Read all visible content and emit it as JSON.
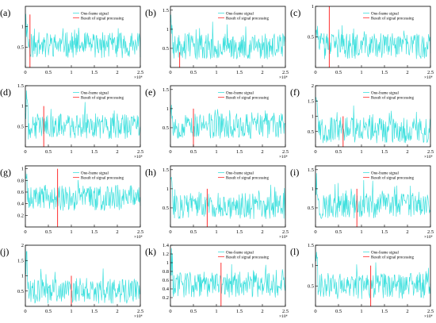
{
  "figure": {
    "legend": {
      "signal": "One-frame signal",
      "result": "Result of signal processing"
    },
    "signal_color": "#3fe0de",
    "result_color": "#ff3030",
    "x_multiplier": "×10⁴"
  },
  "chart_data": [
    {
      "type": "line",
      "panel": "(a)",
      "xlim": [
        0,
        2.5
      ],
      "ylim": [
        0,
        1.5
      ],
      "xticks": [
        0,
        0.5,
        1,
        1.5,
        2,
        2.5
      ],
      "yticks": [
        0.5,
        1
      ],
      "result_x": 0.1,
      "result_y": 1.3,
      "legend": true,
      "baseline": 0.55,
      "seed": 11
    },
    {
      "type": "line",
      "panel": "(b)",
      "xlim": [
        0,
        2.5
      ],
      "ylim": [
        0,
        1.6
      ],
      "xticks": [
        0,
        0.5,
        1,
        1.5,
        2,
        2.5
      ],
      "yticks": [
        0.5,
        1,
        1.5
      ],
      "result_x": 0.2,
      "result_y": 0.4,
      "legend": true,
      "baseline": 0.55,
      "seed": 23
    },
    {
      "type": "line",
      "panel": "(c)",
      "xlim": [
        0,
        2.5
      ],
      "ylim": [
        0,
        1.0
      ],
      "xticks": [
        0,
        0.5,
        1,
        1.5,
        2,
        2.5
      ],
      "yticks": [
        0.5,
        1
      ],
      "result_x": 0.3,
      "result_y": 1.0,
      "legend": true,
      "baseline": 0.35,
      "seed": 37
    },
    {
      "type": "line",
      "panel": "(d)",
      "xlim": [
        0,
        2.5
      ],
      "ylim": [
        0,
        1.5
      ],
      "xticks": [
        0,
        0.5,
        1,
        1.5,
        2,
        2.5
      ],
      "yticks": [
        0.5,
        1,
        1.5
      ],
      "result_x": 0.4,
      "result_y": 1.0,
      "legend": true,
      "baseline": 0.5,
      "seed": 41
    },
    {
      "type": "line",
      "panel": "(e)",
      "xlim": [
        0,
        2.5
      ],
      "ylim": [
        0,
        1.6
      ],
      "xticks": [
        0,
        0.5,
        1,
        1.5,
        2,
        2.5
      ],
      "yticks": [
        0.5,
        1,
        1.5
      ],
      "result_x": 0.5,
      "result_y": 1.0,
      "legend": true,
      "baseline": 0.55,
      "seed": 53
    },
    {
      "type": "line",
      "panel": "(f)",
      "xlim": [
        0,
        2.5
      ],
      "ylim": [
        0,
        2.0
      ],
      "xticks": [
        0,
        0.5,
        1,
        1.5,
        2,
        2.5
      ],
      "yticks": [
        0.5,
        1,
        1.5,
        2
      ],
      "result_x": 0.6,
      "result_y": 1.0,
      "legend": true,
      "baseline": 0.55,
      "seed": 67
    },
    {
      "type": "line",
      "panel": "(g)",
      "xlim": [
        0,
        2.5
      ],
      "ylim": [
        0,
        1.05
      ],
      "xticks": [
        0,
        0.5,
        1,
        1.5,
        2,
        2.5
      ],
      "yticks": [
        0.2,
        0.4,
        0.6,
        0.8,
        1
      ],
      "result_x": 0.7,
      "result_y": 1.0,
      "legend": true,
      "baseline": 0.5,
      "seed": 79
    },
    {
      "type": "line",
      "panel": "(h)",
      "xlim": [
        0,
        2.5
      ],
      "ylim": [
        0,
        1.6
      ],
      "xticks": [
        0,
        0.5,
        1,
        1.5,
        2,
        2.5
      ],
      "yticks": [
        0.5,
        1,
        1.5
      ],
      "result_x": 0.8,
      "result_y": 1.0,
      "legend": true,
      "baseline": 0.55,
      "seed": 83
    },
    {
      "type": "line",
      "panel": "(i)",
      "xlim": [
        0,
        2.5
      ],
      "ylim": [
        0,
        1.6
      ],
      "xticks": [
        0,
        0.5,
        1,
        1.5,
        2,
        2.5
      ],
      "yticks": [
        0.5,
        1,
        1.5
      ],
      "result_x": 0.9,
      "result_y": 1.0,
      "legend": true,
      "baseline": 0.55,
      "seed": 97
    },
    {
      "type": "line",
      "panel": "(j)",
      "xlim": [
        0,
        2.5
      ],
      "ylim": [
        0,
        2.0
      ],
      "xticks": [
        0,
        0.5,
        1,
        1.5,
        2,
        2.5
      ],
      "yticks": [
        0.5,
        1,
        1.5,
        2
      ],
      "result_x": 1.0,
      "result_y": 1.0,
      "legend": false,
      "baseline": 0.5,
      "seed": 101
    },
    {
      "type": "line",
      "panel": "(k)",
      "xlim": [
        0,
        2.5
      ],
      "ylim": [
        0,
        1.4
      ],
      "xticks": [
        0,
        0.5,
        1,
        1.5,
        2,
        2.5
      ],
      "yticks": [
        0.2,
        0.4,
        0.6,
        0.8,
        1,
        1.2,
        1.4
      ],
      "result_x": 1.1,
      "result_y": 1.0,
      "legend": true,
      "baseline": 0.5,
      "seed": 113
    },
    {
      "type": "line",
      "panel": "(l)",
      "xlim": [
        0,
        2.5
      ],
      "ylim": [
        0,
        1.5
      ],
      "xticks": [
        0,
        0.5,
        1,
        1.5,
        2,
        2.5
      ],
      "yticks": [
        0.5,
        1,
        1.5
      ],
      "result_x": 1.2,
      "result_y": 1.0,
      "legend": true,
      "baseline": 0.5,
      "seed": 127
    }
  ]
}
